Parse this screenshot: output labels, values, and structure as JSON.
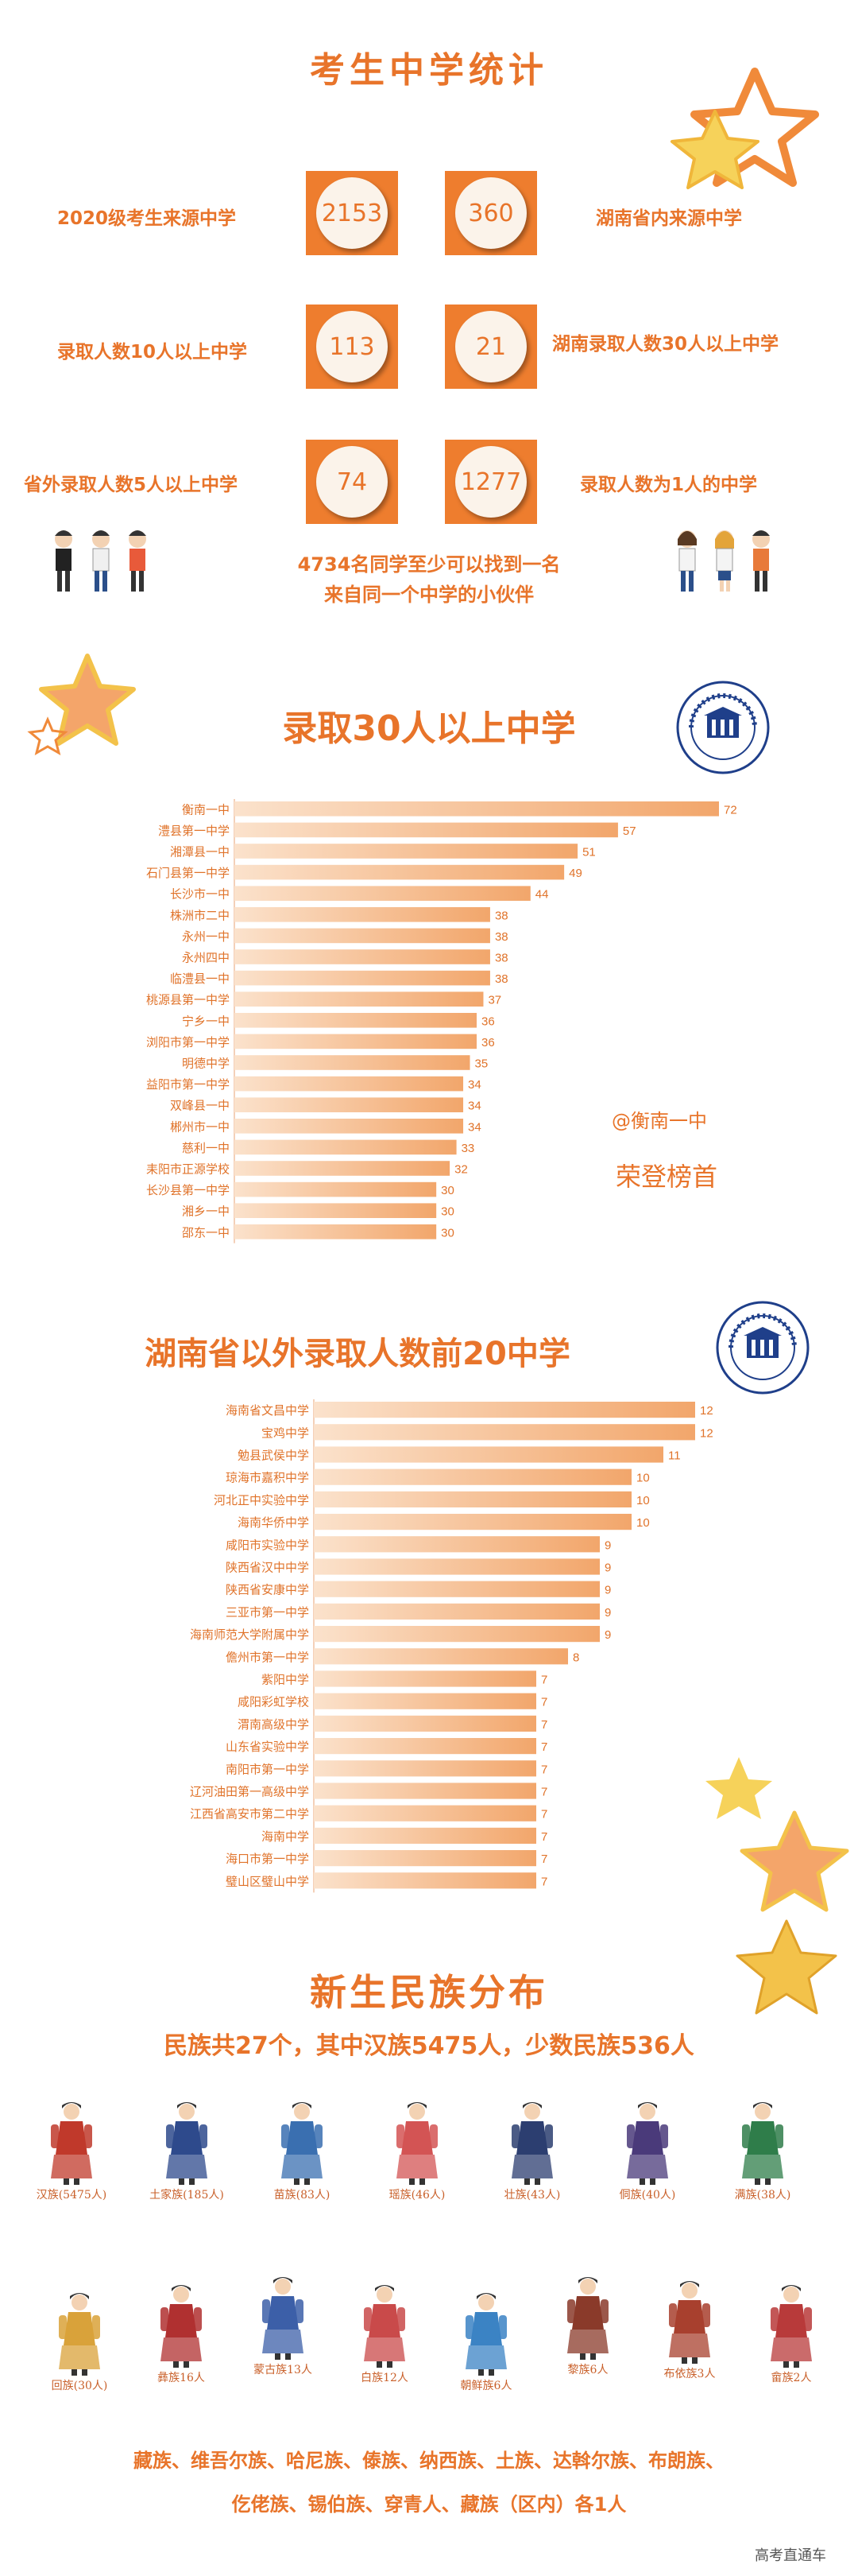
{
  "section1": {
    "title": "考生中学统计",
    "stats": [
      {
        "label": "2020级考生来源中学",
        "value": "2153"
      },
      {
        "label": "湖南省内来源中学",
        "value": "360"
      },
      {
        "label": "录取人数10人以上中学",
        "value": "113"
      },
      {
        "label": "湖南录取人数30人以上中学",
        "value": "21"
      },
      {
        "label": "省外录取人数5人以上中学",
        "value": "74"
      },
      {
        "label": "录取人数为1人的中学",
        "value": "1277"
      }
    ],
    "note_line1": "4734名同学至少可以找到一名",
    "note_line2": "来自同一个中学的小伙伴"
  },
  "section2": {
    "title": "录取30人以上中学",
    "annotation_line1": "@衡南一中",
    "annotation_line2": "荣登榜首"
  },
  "section3": {
    "title": "湖南省以外录取人数前20中学"
  },
  "chart_data": [
    {
      "type": "bar",
      "orientation": "horizontal",
      "categories": [
        "衡南一中",
        "澧县第一中学",
        "湘潭县一中",
        "石门县第一中学",
        "长沙市一中",
        "株洲市二中",
        "永州一中",
        "永州四中",
        "临澧县一中",
        "桃源县第一中学",
        "宁乡一中",
        "浏阳市第一中学",
        "明德中学",
        "益阳市第一中学",
        "双峰县一中",
        "郴州市一中",
        "慈利一中",
        "耒阳市正源学校",
        "长沙县第一中学",
        "湘乡一中",
        "邵东一中"
      ],
      "values": [
        72,
        57,
        51,
        49,
        44,
        38,
        38,
        38,
        38,
        37,
        36,
        36,
        35,
        34,
        34,
        34,
        33,
        32,
        30,
        30,
        30
      ],
      "color": "#f2a66b"
    },
    {
      "type": "bar",
      "orientation": "horizontal",
      "categories": [
        "海南省文昌中学",
        "宝鸡中学",
        "勉县武侯中学",
        "琼海市嘉积中学",
        "河北正中实验中学",
        "海南华侨中学",
        "咸阳市实验中学",
        "陕西省汉中中学",
        "陕西省安康中学",
        "三亚市第一中学",
        "海南师范大学附属中学",
        "儋州市第一中学",
        "紫阳中学",
        "咸阳彩虹学校",
        "渭南高级中学",
        "山东省实验中学",
        "南阳市第一中学",
        "辽河油田第一高级中学",
        "江西省高安市第二中学",
        "海南中学",
        "海口市第一中学",
        "璧山区璧山中学"
      ],
      "values": [
        12,
        12,
        11,
        10,
        10,
        10,
        9,
        9,
        9,
        9,
        9,
        8,
        7,
        7,
        7,
        7,
        7,
        7,
        7,
        7,
        7,
        7
      ],
      "color": "#f2a66b"
    }
  ],
  "section4": {
    "title": "新生民族分布",
    "subtitle": "民族共27个，其中汉族5475人，少数民族536人",
    "row1": [
      {
        "label": "汉族(5475人)",
        "color": "#c0392b"
      },
      {
        "label": "土家族(185人)",
        "color": "#2e4a8c"
      },
      {
        "label": "苗族(83人)",
        "color": "#3a6fb0"
      },
      {
        "label": "瑶族(46人)",
        "color": "#d35454"
      },
      {
        "label": "壮族(43人)",
        "color": "#2c3e70"
      },
      {
        "label": "侗族(40人)",
        "color": "#4a3a7a"
      },
      {
        "label": "满族(38人)",
        "color": "#2f7d4a"
      }
    ],
    "row2": [
      {
        "label": "回族(30人)",
        "color": "#d9a23a"
      },
      {
        "label": "彝族16人",
        "color": "#b03030"
      },
      {
        "label": "蒙古族13人",
        "color": "#3c5fa8"
      },
      {
        "label": "白族12人",
        "color": "#c94a4a"
      },
      {
        "label": "朝鲜族6人",
        "color": "#3b83c4"
      },
      {
        "label": "黎族6人",
        "color": "#8a3a2a"
      },
      {
        "label": "布依族3人",
        "color": "#a8402e"
      },
      {
        "label": "畲族2人",
        "color": "#b83a3a"
      }
    ],
    "bottom_line1": "藏族、维吾尔族、哈尼族、傣族、纳西族、土族、达斡尔族、布朗族、",
    "bottom_line2": "仡佬族、锡伯族、穿青人、藏族（区内）各1人"
  },
  "footer": "高考直通车"
}
